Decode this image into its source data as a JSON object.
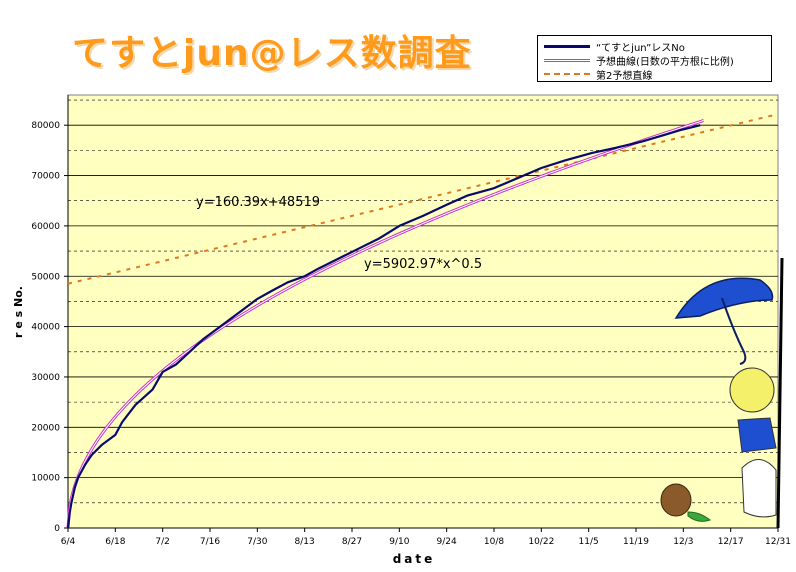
{
  "page": {
    "title": "てすとjun@レス数調査"
  },
  "legend": {
    "items": [
      {
        "label": "“てすとjun”レスNo",
        "color": "#0a0a6e",
        "style": "solid"
      },
      {
        "label": "予想曲線(日数の平方根に比例)",
        "color": "#cc33cc",
        "style": "double"
      },
      {
        "label": "第2予想直線",
        "color": "#e07820",
        "style": "dashed"
      }
    ]
  },
  "annotations": {
    "linear_fit": "y=160.39x+48519",
    "sqrt_fit": "y=5902.97*x^0.5"
  },
  "chart_data": {
    "type": "line",
    "xlabel": "date",
    "ylabel": "r e s No.",
    "x_ticks": [
      "6/4",
      "6/18",
      "7/2",
      "7/16",
      "7/30",
      "8/13",
      "8/27",
      "9/10",
      "9/24",
      "10/8",
      "10/22",
      "11/5",
      "11/19",
      "12/3",
      "12/17",
      "12/31"
    ],
    "y_ticks": [
      0,
      10000,
      20000,
      30000,
      40000,
      50000,
      60000,
      70000,
      80000
    ],
    "xlim_days": [
      0,
      210
    ],
    "ylim": [
      0,
      86000
    ],
    "plot_background": "#ffffc0",
    "grid": "horizontal solid at major ticks, dashed at half ticks",
    "series": [
      {
        "name": "“てすとjun”レスNo",
        "color": "#0a0a6e",
        "points_day_value": [
          [
            0,
            0
          ],
          [
            0.5,
            3000
          ],
          [
            1,
            5000
          ],
          [
            2,
            8000
          ],
          [
            3,
            10000
          ],
          [
            5,
            12500
          ],
          [
            7,
            14500
          ],
          [
            10,
            16500
          ],
          [
            14,
            18500
          ],
          [
            16,
            21000
          ],
          [
            20,
            24500
          ],
          [
            25,
            27500
          ],
          [
            28,
            31000
          ],
          [
            32,
            32500
          ],
          [
            36,
            35000
          ],
          [
            40,
            37500
          ],
          [
            45,
            40000
          ],
          [
            52,
            43500
          ],
          [
            56,
            45500
          ],
          [
            60,
            47000
          ],
          [
            65,
            48800
          ],
          [
            70,
            50000
          ],
          [
            74,
            51500
          ],
          [
            80,
            53500
          ],
          [
            86,
            55500
          ],
          [
            92,
            57500
          ],
          [
            98,
            60000
          ],
          [
            105,
            62000
          ],
          [
            112,
            64200
          ],
          [
            118,
            66000
          ],
          [
            126,
            67500
          ],
          [
            133,
            69500
          ],
          [
            140,
            71500
          ],
          [
            147,
            73000
          ],
          [
            155,
            74500
          ],
          [
            162,
            75500
          ],
          [
            170,
            76800
          ],
          [
            176,
            78000
          ],
          [
            181,
            79000
          ],
          [
            187,
            80000
          ]
        ]
      },
      {
        "name": "予想曲線(日数の平方根に比例)",
        "color": "#cc33cc",
        "formula": "y=5902.97*x^0.5",
        "x_range_days": [
          0,
          188
        ]
      },
      {
        "name": "第2予想直線",
        "color": "#e07820",
        "formula": "y=160.39x+48519",
        "x_range_days": [
          0,
          210
        ]
      }
    ]
  }
}
